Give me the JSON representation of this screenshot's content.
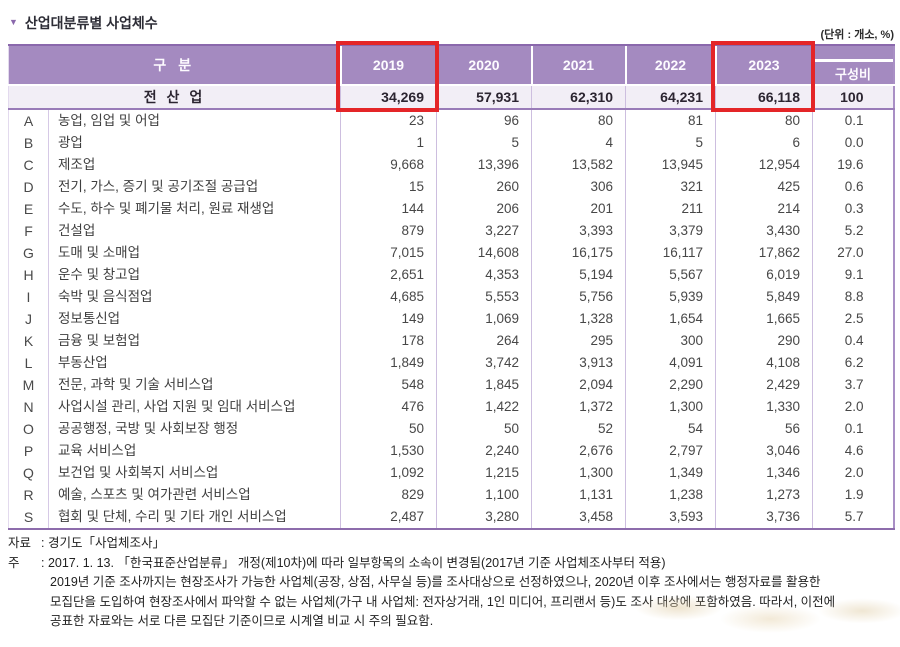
{
  "title": {
    "marker": "▼",
    "text": "산업대분류별 사업체수"
  },
  "unit_label": "(단위 : 개소, %)",
  "colors": {
    "header_purple": "#a48ac0",
    "header_purple_dark": "#8a68ac",
    "total_row_bg": "#f2eef6",
    "highlight_red": "#e42528"
  },
  "table": {
    "col_group_label": "구 분",
    "year_headers": [
      "2019",
      "2020",
      "2021",
      "2022",
      "2023"
    ],
    "share_header": "구성비",
    "highlight_columns": [
      "2019",
      "2023"
    ],
    "total_row": {
      "label": "전 산 업",
      "values": [
        "34,269",
        "57,931",
        "62,310",
        "64,231",
        "66,118"
      ],
      "share": "100"
    },
    "rows": [
      {
        "code": "A",
        "name": "농업, 임업 및 어업",
        "values": [
          "23",
          "96",
          "80",
          "81",
          "80"
        ],
        "share": "0.1"
      },
      {
        "code": "B",
        "name": "광업",
        "values": [
          "1",
          "5",
          "4",
          "5",
          "6"
        ],
        "share": "0.0"
      },
      {
        "code": "C",
        "name": "제조업",
        "values": [
          "9,668",
          "13,396",
          "13,582",
          "13,945",
          "12,954"
        ],
        "share": "19.6"
      },
      {
        "code": "D",
        "name": "전기, 가스, 증기 및 공기조절 공급업",
        "values": [
          "15",
          "260",
          "306",
          "321",
          "425"
        ],
        "share": "0.6"
      },
      {
        "code": "E",
        "name": "수도, 하수 및 폐기물 처리, 원료 재생업",
        "values": [
          "144",
          "206",
          "201",
          "211",
          "214"
        ],
        "share": "0.3"
      },
      {
        "code": "F",
        "name": "건설업",
        "values": [
          "879",
          "3,227",
          "3,393",
          "3,379",
          "3,430"
        ],
        "share": "5.2"
      },
      {
        "code": "G",
        "name": "도매 및 소매업",
        "values": [
          "7,015",
          "14,608",
          "16,175",
          "16,117",
          "17,862"
        ],
        "share": "27.0"
      },
      {
        "code": "H",
        "name": "운수 및 창고업",
        "values": [
          "2,651",
          "4,353",
          "5,194",
          "5,567",
          "6,019"
        ],
        "share": "9.1"
      },
      {
        "code": "I",
        "name": "숙박 및 음식점업",
        "values": [
          "4,685",
          "5,553",
          "5,756",
          "5,939",
          "5,849"
        ],
        "share": "8.8"
      },
      {
        "code": "J",
        "name": "정보통신업",
        "values": [
          "149",
          "1,069",
          "1,328",
          "1,654",
          "1,665"
        ],
        "share": "2.5"
      },
      {
        "code": "K",
        "name": "금융 및 보험업",
        "values": [
          "178",
          "264",
          "295",
          "300",
          "290"
        ],
        "share": "0.4"
      },
      {
        "code": "L",
        "name": "부동산업",
        "values": [
          "1,849",
          "3,742",
          "3,913",
          "4,091",
          "4,108"
        ],
        "share": "6.2"
      },
      {
        "code": "M",
        "name": "전문, 과학 및 기술 서비스업",
        "values": [
          "548",
          "1,845",
          "2,094",
          "2,290",
          "2,429"
        ],
        "share": "3.7"
      },
      {
        "code": "N",
        "name": "사업시설 관리, 사업 지원 및 임대 서비스업",
        "values": [
          "476",
          "1,422",
          "1,372",
          "1,300",
          "1,330"
        ],
        "share": "2.0"
      },
      {
        "code": "O",
        "name": "공공행정, 국방 및 사회보장 행정",
        "values": [
          "50",
          "50",
          "52",
          "54",
          "56"
        ],
        "share": "0.1"
      },
      {
        "code": "P",
        "name": "교육 서비스업",
        "values": [
          "1,530",
          "2,240",
          "2,676",
          "2,797",
          "3,046"
        ],
        "share": "4.6"
      },
      {
        "code": "Q",
        "name": "보건업 및 사회복지 서비스업",
        "values": [
          "1,092",
          "1,215",
          "1,300",
          "1,349",
          "1,346"
        ],
        "share": "2.0"
      },
      {
        "code": "R",
        "name": "예술, 스포츠 및 여가관련 서비스업",
        "values": [
          "829",
          "1,100",
          "1,131",
          "1,238",
          "1,273"
        ],
        "share": "1.9"
      },
      {
        "code": "S",
        "name": "협회 및 단체, 수리 및 기타 개인 서비스업",
        "values": [
          "2,487",
          "3,280",
          "3,458",
          "3,593",
          "3,736"
        ],
        "share": "5.7"
      }
    ]
  },
  "footnotes": {
    "source_label": "자료",
    "source_text": ": 경기도「사업체조사」",
    "note_label": "주",
    "note_lines": [
      ": 2017. 1. 13. 「한국표준산업분류」 개정(제10차)에 따라 일부항목의 소속이 변경됨(2017년 기준 사업체조사부터 적용)",
      "2019년 기준 조사까지는 현장조사가 가능한 사업체(공장, 상점, 사무실 등)를 조사대상으로 선정하였으나, 2020년 이후 조사에서는 행정자료를 활용한",
      "모집단을 도입하여 현장조사에서 파악할 수 없는 사업체(가구 내 사업체: 전자상거래, 1인 미디어, 프리랜서 등)도 조사 대상에 포함하였음. 따라서, 이전에",
      "공표한 자료와는 서로 다른 모집단 기준이므로 시계열 비교 시 주의 필요함."
    ]
  }
}
